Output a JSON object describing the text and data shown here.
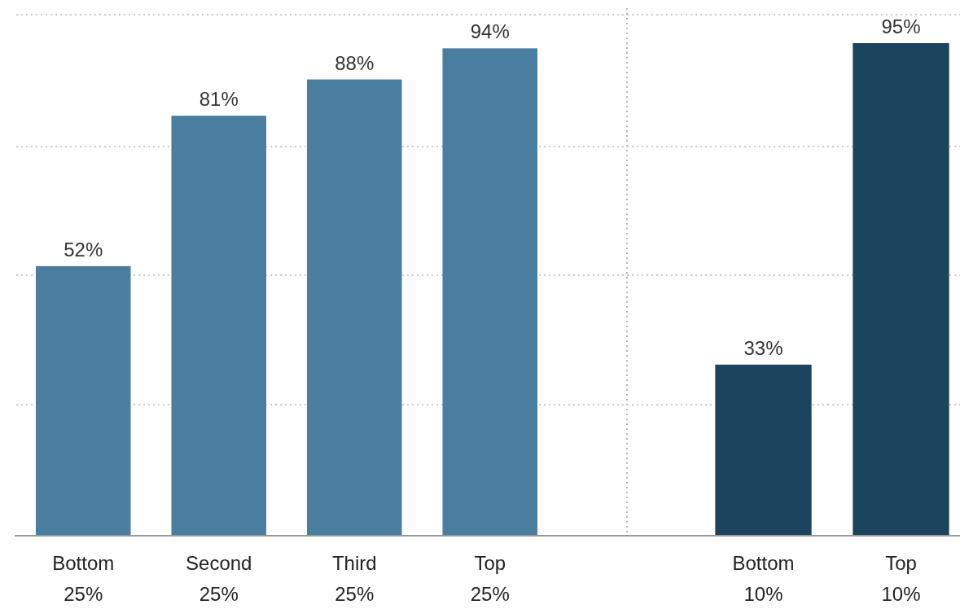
{
  "chart_data": [
    {
      "type": "bar",
      "categories": [
        "Bottom 25%",
        "Second 25%",
        "Third 25%",
        "Top 25%"
      ],
      "values": [
        52,
        81,
        88,
        94
      ],
      "value_labels": [
        "52%",
        "81%",
        "88%",
        "94%"
      ],
      "color": "#4a7ea1",
      "grid": "y",
      "tick_labels": "x"
    },
    {
      "type": "bar",
      "categories": [
        "Bottom 10%",
        "Top 10%"
      ],
      "values": [
        33,
        95
      ],
      "value_labels": [
        "33%",
        "95%"
      ],
      "color": "#1c445e",
      "grid": "y",
      "tick_labels": "x"
    }
  ]
}
